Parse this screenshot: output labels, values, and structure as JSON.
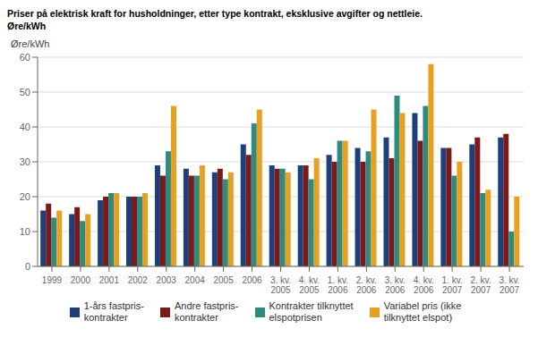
{
  "chart_data": {
    "type": "bar",
    "title": "Priser på elektrisk kraft for husholdninger, etter type kontrakt, eksklusive avgifter og nettleie.",
    "subtitle": "Øre/kWh",
    "ylabel": "Øre/kWh",
    "categories": [
      "1999",
      "2000",
      "2001",
      "2002",
      "2003",
      "2004",
      "2005",
      "2006",
      "3. kv.\n2005",
      "4. kv.\n2005",
      "1. kv.\n2006",
      "2. kv.\n2006",
      "3. kv.\n2006",
      "4. kv.\n2006",
      "1. kv.\n2007",
      "2. kv.\n2007",
      "3. kv.\n2007"
    ],
    "series": [
      {
        "name": "1-års fastpris-\nkontrakter",
        "color": "#1f3f7a",
        "values": [
          16,
          15,
          19,
          20,
          29,
          28,
          27,
          35,
          29,
          29,
          32,
          34,
          37,
          44,
          34,
          35,
          37
        ]
      },
      {
        "name": "Andre fastpris-\nkontrakter",
        "color": "#7b1a1a",
        "values": [
          18,
          17,
          20,
          20,
          26,
          26,
          28,
          32,
          28,
          29,
          30,
          30,
          31,
          36,
          34,
          37,
          38
        ]
      },
      {
        "name": "Kontrakter tilknyttet\nelspotprisen",
        "color": "#2e8b80",
        "values": [
          14,
          13,
          21,
          20,
          33,
          26,
          25,
          41,
          28,
          25,
          36,
          33,
          49,
          46,
          26,
          21,
          10
        ]
      },
      {
        "name": "Variabel pris (ikke\ntilknyttet elspot)",
        "color": "#e8a020",
        "values": [
          16,
          15,
          21,
          21,
          46,
          29,
          27,
          45,
          27,
          31,
          36,
          45,
          44,
          58,
          30,
          22,
          20
        ]
      }
    ],
    "ylim": [
      0,
      60
    ],
    "yticks": [
      0,
      10,
      20,
      30,
      40,
      50,
      60
    ],
    "grid": true,
    "legend": "bottom"
  }
}
